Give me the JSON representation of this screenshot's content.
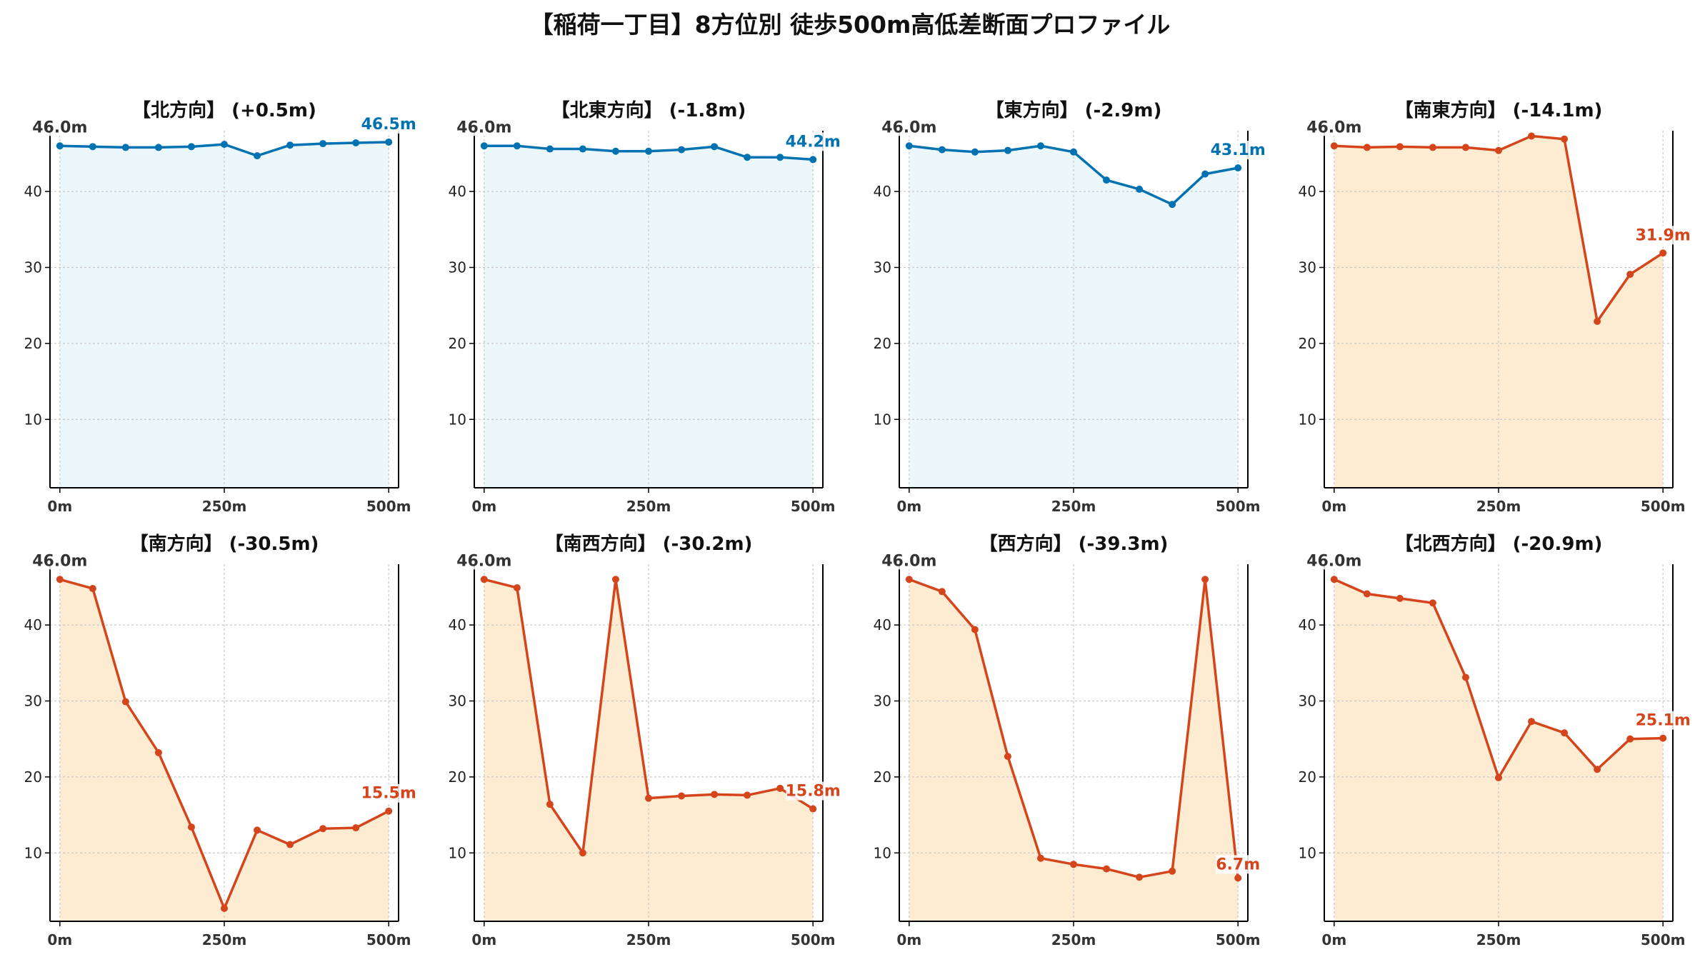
{
  "title": "【稲荷一丁目】8方位別 徒歩500m高低差断面プロファイル",
  "colors": {
    "up_line": "#0072b2",
    "up_fill": "#ecf7fb",
    "down_line": "#d5451b",
    "down_fill": "#fdecd2"
  },
  "chart_data": [
    {
      "type": "area",
      "title": "【北方向】 (+0.5m)",
      "trend": "up",
      "x": [
        0,
        50,
        100,
        150,
        200,
        250,
        300,
        350,
        400,
        450,
        500
      ],
      "y": [
        46.0,
        45.9,
        45.8,
        45.8,
        45.9,
        46.2,
        44.7,
        46.1,
        46.3,
        46.4,
        46.5
      ],
      "xticks": [
        "0m",
        "250m",
        "500m"
      ],
      "yticks": [
        10,
        20,
        30,
        40
      ],
      "start_label": "46.0m",
      "end_label": "46.5m",
      "ylim": [
        1,
        48
      ],
      "xlim": [
        -15,
        515
      ],
      "grid": true
    },
    {
      "type": "area",
      "title": "【北東方向】 (-1.8m)",
      "trend": "up",
      "x": [
        0,
        50,
        100,
        150,
        200,
        250,
        300,
        350,
        400,
        450,
        500
      ],
      "y": [
        46.0,
        46.0,
        45.6,
        45.6,
        45.3,
        45.3,
        45.5,
        45.9,
        44.5,
        44.5,
        44.2
      ],
      "xticks": [
        "0m",
        "250m",
        "500m"
      ],
      "yticks": [
        10,
        20,
        30,
        40
      ],
      "start_label": "46.0m",
      "end_label": "44.2m",
      "ylim": [
        1,
        48
      ],
      "xlim": [
        -15,
        515
      ],
      "grid": true
    },
    {
      "type": "area",
      "title": "【東方向】 (-2.9m)",
      "trend": "up",
      "x": [
        0,
        50,
        100,
        150,
        200,
        250,
        300,
        350,
        400,
        450,
        500
      ],
      "y": [
        46.0,
        45.5,
        45.2,
        45.4,
        46.0,
        45.2,
        41.5,
        40.3,
        38.3,
        42.3,
        43.1
      ],
      "xticks": [
        "0m",
        "250m",
        "500m"
      ],
      "yticks": [
        10,
        20,
        30,
        40
      ],
      "start_label": "46.0m",
      "end_label": "43.1m",
      "ylim": [
        1,
        48
      ],
      "xlim": [
        -15,
        515
      ],
      "grid": true
    },
    {
      "type": "area",
      "title": "【南東方向】 (-14.1m)",
      "trend": "down",
      "x": [
        0,
        50,
        100,
        150,
        200,
        250,
        300,
        350,
        400,
        450,
        500
      ],
      "y": [
        46.0,
        45.8,
        45.9,
        45.8,
        45.8,
        45.4,
        47.3,
        46.9,
        22.9,
        29.1,
        31.9
      ],
      "xticks": [
        "0m",
        "250m",
        "500m"
      ],
      "yticks": [
        10,
        20,
        30,
        40
      ],
      "start_label": "46.0m",
      "end_label": "31.9m",
      "ylim": [
        1,
        48
      ],
      "xlim": [
        -15,
        515
      ],
      "grid": true
    },
    {
      "type": "area",
      "title": "【南方向】 (-30.5m)",
      "trend": "down",
      "x": [
        0,
        50,
        100,
        150,
        200,
        250,
        300,
        350,
        400,
        450,
        500
      ],
      "y": [
        46.0,
        44.8,
        29.9,
        23.2,
        13.4,
        2.7,
        13.0,
        11.1,
        13.2,
        13.3,
        15.5
      ],
      "xticks": [
        "0m",
        "250m",
        "500m"
      ],
      "yticks": [
        10,
        20,
        30,
        40
      ],
      "start_label": "46.0m",
      "end_label": "15.5m",
      "ylim": [
        1,
        48
      ],
      "xlim": [
        -15,
        515
      ],
      "grid": true
    },
    {
      "type": "area",
      "title": "【南西方向】 (-30.2m)",
      "trend": "down",
      "x": [
        0,
        50,
        100,
        150,
        200,
        250,
        300,
        350,
        400,
        450,
        500
      ],
      "y": [
        46.0,
        44.9,
        16.4,
        10.0,
        46.0,
        17.2,
        17.5,
        17.7,
        17.6,
        18.5,
        15.8
      ],
      "xticks": [
        "0m",
        "250m",
        "500m"
      ],
      "yticks": [
        10,
        20,
        30,
        40
      ],
      "start_label": "46.0m",
      "end_label": "15.8m",
      "ylim": [
        1,
        48
      ],
      "xlim": [
        -15,
        515
      ],
      "grid": true
    },
    {
      "type": "area",
      "title": "【西方向】 (-39.3m)",
      "trend": "down",
      "x": [
        0,
        50,
        100,
        150,
        200,
        250,
        300,
        350,
        400,
        450,
        500
      ],
      "y": [
        46.0,
        44.4,
        39.4,
        22.7,
        9.3,
        8.5,
        7.9,
        6.8,
        7.6,
        46.0,
        6.7
      ],
      "xticks": [
        "0m",
        "250m",
        "500m"
      ],
      "yticks": [
        10,
        20,
        30,
        40
      ],
      "start_label": "46.0m",
      "end_label": "6.7m",
      "ylim": [
        1,
        48
      ],
      "xlim": [
        -15,
        515
      ],
      "grid": true
    },
    {
      "type": "area",
      "title": "【北西方向】 (-20.9m)",
      "trend": "down",
      "x": [
        0,
        50,
        100,
        150,
        200,
        250,
        300,
        350,
        400,
        450,
        500
      ],
      "y": [
        46.0,
        44.1,
        43.5,
        42.9,
        33.1,
        19.9,
        27.3,
        25.8,
        21.0,
        25.0,
        25.1
      ],
      "xticks": [
        "0m",
        "250m",
        "500m"
      ],
      "yticks": [
        10,
        20,
        30,
        40
      ],
      "start_label": "46.0m",
      "end_label": "25.1m",
      "ylim": [
        1,
        48
      ],
      "xlim": [
        -15,
        515
      ],
      "grid": true
    }
  ]
}
